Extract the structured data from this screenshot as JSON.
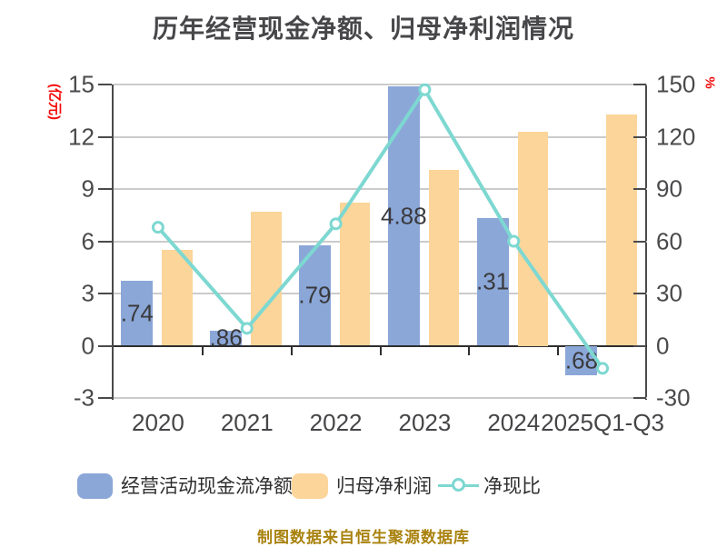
{
  "title": "历年经营现金净额、归母净利润情况",
  "footer": "制图数据来自恒生聚源数据库",
  "left_axis": {
    "unit": "(亿元)",
    "ticks": [
      15,
      12,
      9,
      6,
      3,
      0,
      -3
    ],
    "range": [
      -3,
      15
    ]
  },
  "right_axis": {
    "unit": "%",
    "ticks": [
      150,
      120,
      90,
      60,
      30,
      0,
      -30
    ],
    "range": [
      -30,
      150
    ]
  },
  "legend": {
    "items": [
      {
        "label": "经营活动现金流净额",
        "type": "bar",
        "color": "#8ba7d8"
      },
      {
        "label": "归母净利润",
        "type": "bar",
        "color": "#fcd59a"
      },
      {
        "label": "净现比",
        "type": "line",
        "color": "#7dd8d1"
      }
    ]
  },
  "colors": {
    "cash_bar": "#8ba7d8",
    "profit_bar": "#fcd59a",
    "ratio_line": "#7dd8d1",
    "marker_fill": "#ffffff",
    "axis_unit_red": "#f40b0b",
    "grid": "#cbcbcb",
    "zero_line": "#2e2e2e",
    "text_dark": "#4a4a4c",
    "footer_gold": "#a9820d"
  },
  "chart_data": {
    "type": "bar+line combo",
    "title": "历年经营现金净额、归母净利润情况",
    "categories": [
      "2020",
      "2021",
      "2022",
      "2023",
      "2024",
      "2025Q1-Q3"
    ],
    "left_ylim": [
      -3,
      15
    ],
    "right_ylim": [
      -30,
      150
    ],
    "grid": true,
    "legend_position": "bottom",
    "series": [
      {
        "name": "经营活动现金流净额",
        "type": "bar",
        "axis": "left",
        "unit": "亿元",
        "values": [
          3.74,
          0.86,
          5.79,
          14.88,
          7.31,
          -1.68
        ],
        "visible_labels": [
          ".74",
          ".86",
          ".79",
          "4.88",
          ".31",
          ".68"
        ]
      },
      {
        "name": "归母净利润",
        "type": "bar",
        "axis": "left",
        "unit": "亿元",
        "values": [
          5.5,
          7.7,
          8.2,
          10.1,
          12.3,
          13.3
        ]
      },
      {
        "name": "净现比",
        "type": "line",
        "axis": "right",
        "unit": "%",
        "values": [
          68,
          10,
          70,
          147,
          60,
          -13
        ]
      }
    ]
  }
}
